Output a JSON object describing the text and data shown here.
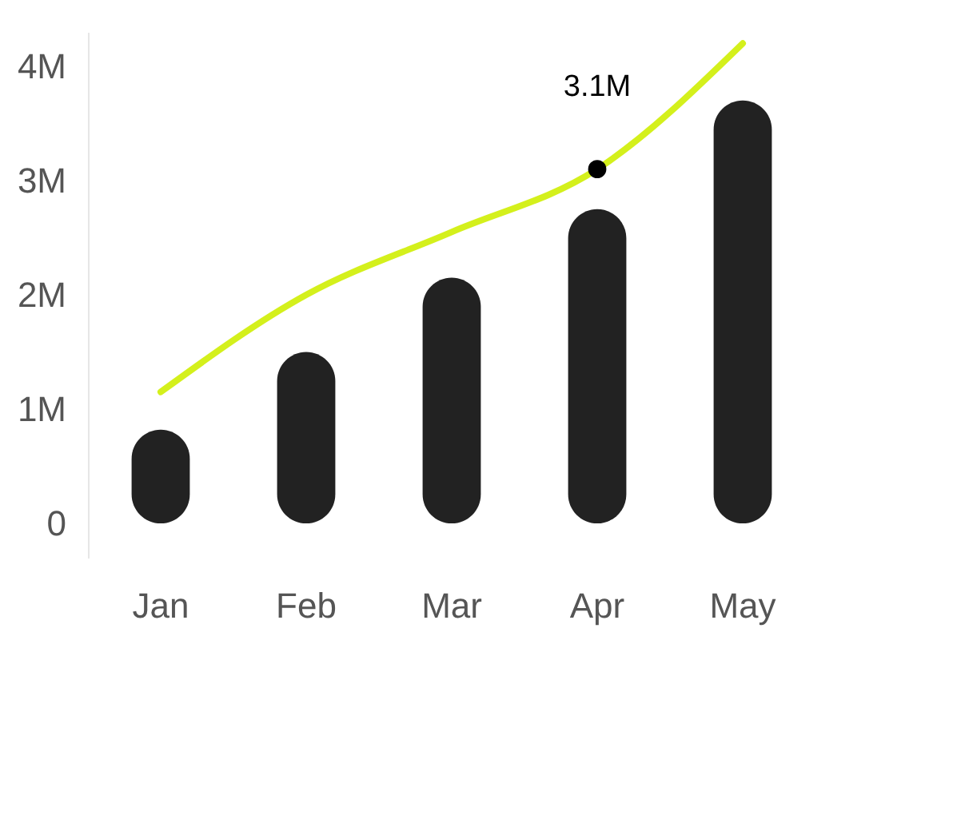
{
  "chart_data": {
    "type": "bar",
    "categories": [
      "Jan",
      "Feb",
      "Mar",
      "Apr",
      "May"
    ],
    "series": [
      {
        "color": "#222222",
        "values": [
          0.82,
          1.5,
          2.15,
          2.75,
          3.7
        ]
      },
      {
        "type": "line",
        "color": "#d4f01c",
        "values": [
          1.15,
          2.0,
          2.55,
          3.1,
          4.2
        ]
      }
    ],
    "ylim": [
      -0.3,
      4.3
    ],
    "yticks": [
      0,
      {
        "value": 1,
        "label": "1M"
      },
      {
        "value": 2,
        "label": "2M"
      },
      {
        "value": 3,
        "label": "3M"
      },
      {
        "value": 4,
        "label": "4M"
      }
    ],
    "annotations": [
      {
        "text": "3.1M",
        "x": "Apr",
        "y": 3.1
      }
    ],
    "grid": false
  }
}
